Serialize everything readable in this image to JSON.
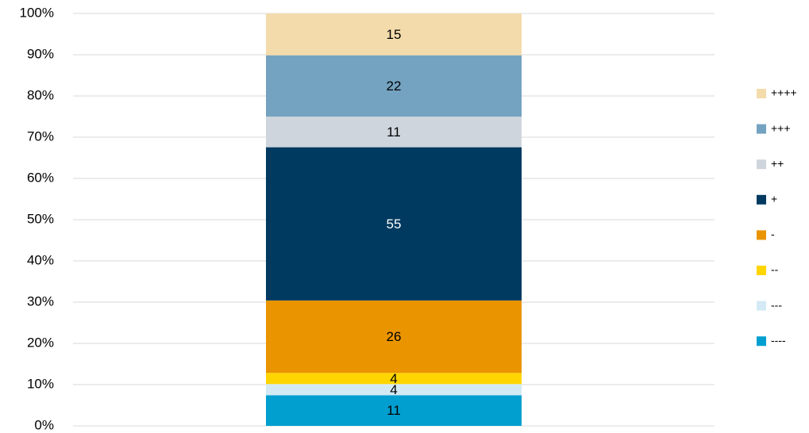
{
  "chart_data": {
    "type": "bar",
    "stack": "percent",
    "categories": [
      null
    ],
    "series": [
      {
        "name": "----",
        "color": "#009fcf",
        "values": [
          11
        ]
      },
      {
        "name": "---",
        "color": "#d3eaf5",
        "values": [
          4
        ]
      },
      {
        "name": "--",
        "color": "#ffd500",
        "values": [
          4
        ]
      },
      {
        "name": "-",
        "color": "#ea9400",
        "values": [
          26
        ]
      },
      {
        "name": "+",
        "color": "#003a60",
        "values": [
          55
        ]
      },
      {
        "name": "++",
        "color": "#cfd5dc",
        "values": [
          11
        ]
      },
      {
        "name": "+++",
        "color": "#74a3c1",
        "values": [
          22
        ]
      },
      {
        "name": "++++",
        "color": "#f3dbab",
        "values": [
          15
        ]
      }
    ],
    "ylim": [
      0,
      100
    ],
    "yticks": [
      {
        "value": 0,
        "label": "0%"
      },
      {
        "value": 10,
        "label": "10%"
      },
      {
        "value": 20,
        "label": "20%"
      },
      {
        "value": 30,
        "label": "30%"
      },
      {
        "value": 40,
        "label": "40%"
      },
      {
        "value": 50,
        "label": "50%"
      },
      {
        "value": 60,
        "label": "60%"
      },
      {
        "value": 70,
        "label": "70%"
      },
      {
        "value": 80,
        "label": "80%"
      },
      {
        "value": 90,
        "label": "90%"
      },
      {
        "value": 100,
        "label": "100%"
      }
    ],
    "grid": true,
    "legend": "right"
  }
}
